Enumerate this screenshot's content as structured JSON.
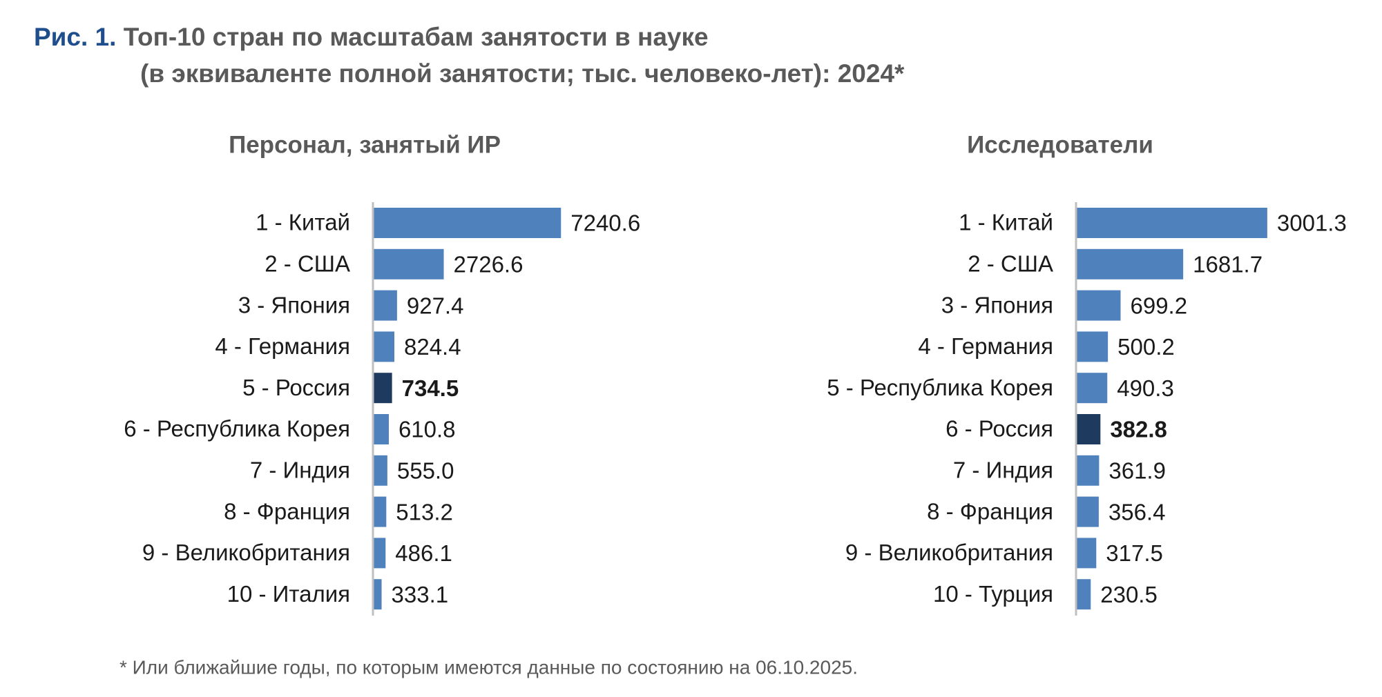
{
  "figure_label": "Рис. 1.",
  "title": "Топ-10 стран по масштабам занятости в науке",
  "subtitle": "(в эквиваленте полной занятости; тыс. человеко-лет): 2024*",
  "footnote": "* Или ближайшие годы, по которым имеются данные по состоянию на 06.10.2025.",
  "chart_data": [
    {
      "type": "bar",
      "orientation": "horizontal",
      "title": "Персонал, занятый ИР",
      "categories": [
        "1 - Китай",
        "2 - США",
        "3 - Япония",
        "4 - Германия",
        "5 - Россия",
        "6 - Республика Корея",
        "7 - Индия",
        "8 - Франция",
        "9 - Великобритания",
        "10 - Италия"
      ],
      "values": [
        7240.6,
        2726.6,
        927.4,
        824.4,
        734.5,
        610.8,
        555.0,
        513.2,
        486.1,
        333.1
      ],
      "value_labels": [
        "7240.6",
        "2726.6",
        "927.4",
        "824.4",
        "734.5",
        "610.8",
        "555.0",
        "513.2",
        "486.1",
        "333.1"
      ],
      "color": "#4f81bd",
      "colors": [
        "#4f81bd",
        "#4f81bd",
        "#4f81bd",
        "#4f81bd",
        "#1f3a5f",
        "#4f81bd",
        "#4f81bd",
        "#4f81bd",
        "#4f81bd",
        "#4f81bd"
      ],
      "xlim": [
        0,
        7500
      ]
    },
    {
      "type": "bar",
      "orientation": "horizontal",
      "title": "Исследователи",
      "categories": [
        "1 - Китай",
        "2 - США",
        "3 - Япония",
        "4 - Германия",
        "5 - Республика Корея",
        "6 - Россия",
        "7 - Индия",
        "8 - Франция",
        "9 - Великобритания",
        "10 - Турция"
      ],
      "values": [
        3001.3,
        1681.7,
        699.2,
        500.2,
        490.3,
        382.8,
        361.9,
        356.4,
        317.5,
        230.5
      ],
      "value_labels": [
        "3001.3",
        "1681.7",
        "699.2",
        "500.2",
        "490.3",
        "382.8",
        "361.9",
        "356.4",
        "317.5",
        "230.5"
      ],
      "color": "#4f81bd",
      "colors": [
        "#4f81bd",
        "#4f81bd",
        "#4f81bd",
        "#4f81bd",
        "#4f81bd",
        "#1f3a5f",
        "#4f81bd",
        "#4f81bd",
        "#4f81bd",
        "#4f81bd"
      ],
      "xlim": [
        0,
        3100
      ]
    }
  ]
}
